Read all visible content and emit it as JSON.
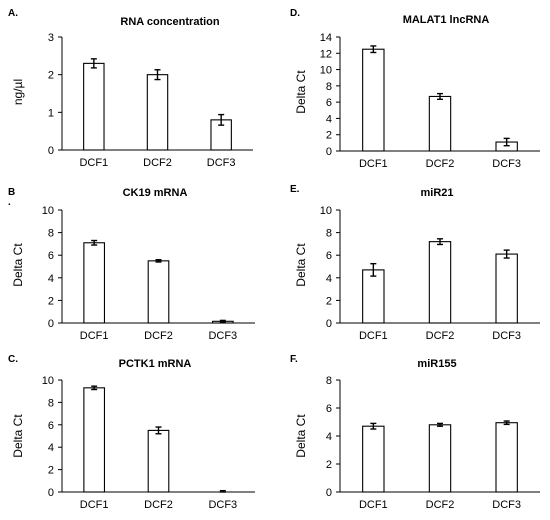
{
  "chart_data": [
    {
      "panel": "A.",
      "type": "bar",
      "title": "RNA concentration",
      "ylabel": "ng/µl",
      "categories": [
        "DCF1",
        "DCF2",
        "DCF3"
      ],
      "values": [
        2.3,
        2.0,
        0.8
      ],
      "errors": [
        0.12,
        0.13,
        0.14
      ],
      "ylim": [
        0,
        3
      ],
      "yticks": [
        0,
        1,
        2,
        3
      ],
      "grid": false
    },
    {
      "panel": "D.",
      "type": "bar",
      "title": "MALAT1 lncRNA",
      "ylabel": "Delta Ct",
      "categories": [
        "DCF1",
        "DCF2",
        "DCF3"
      ],
      "values": [
        12.5,
        6.7,
        1.1
      ],
      "errors": [
        0.4,
        0.35,
        0.45
      ],
      "ylim": [
        0,
        14
      ],
      "yticks": [
        0,
        2,
        4,
        6,
        8,
        10,
        12,
        14
      ],
      "grid": false
    },
    {
      "panel": "B",
      "panel_suffix": ".",
      "type": "bar",
      "title": "CK19 mRNA",
      "ylabel": "Delta Ct",
      "categories": [
        "DCF1",
        "DCF2",
        "DCF3"
      ],
      "values": [
        7.1,
        5.5,
        0.15
      ],
      "errors": [
        0.2,
        0.1,
        0.08
      ],
      "ylim": [
        0,
        10
      ],
      "yticks": [
        0,
        2,
        4,
        6,
        8,
        10
      ],
      "grid": false
    },
    {
      "panel": "E.",
      "type": "bar",
      "title": "miR21",
      "ylabel": "Delta Ct",
      "categories": [
        "DCF1",
        "DCF2",
        "DCF3"
      ],
      "values": [
        4.7,
        7.2,
        6.1
      ],
      "errors": [
        0.55,
        0.25,
        0.35
      ],
      "ylim": [
        0,
        10
      ],
      "yticks": [
        0,
        2,
        4,
        6,
        8,
        10
      ],
      "grid": false
    },
    {
      "panel": "C.",
      "type": "bar",
      "title": "PCTK1 mRNA",
      "ylabel": "Delta Ct",
      "categories": [
        "DCF1",
        "DCF2",
        "DCF3"
      ],
      "values": [
        9.3,
        5.5,
        0.0
      ],
      "errors": [
        0.15,
        0.3,
        0.12
      ],
      "ylim": [
        0,
        10
      ],
      "yticks": [
        0,
        2,
        4,
        6,
        8,
        10
      ],
      "grid": false
    },
    {
      "panel": "F.",
      "type": "bar",
      "title": "miR155",
      "ylabel": "Delta Ct",
      "categories": [
        "DCF1",
        "DCF2",
        "DCF3"
      ],
      "values": [
        4.7,
        4.8,
        4.95
      ],
      "errors": [
        0.2,
        0.1,
        0.12
      ],
      "ylim": [
        0,
        8
      ],
      "yticks": [
        0,
        2,
        4,
        6,
        8
      ],
      "grid": false
    }
  ]
}
